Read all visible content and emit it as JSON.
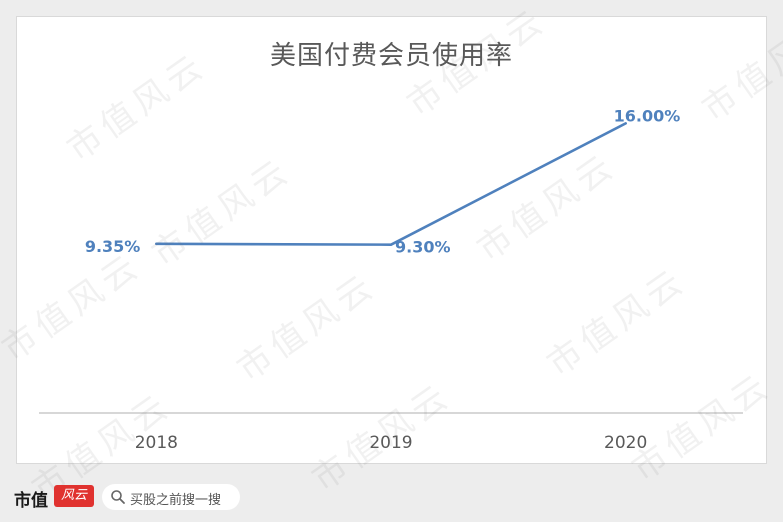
{
  "chart_data": {
    "type": "line",
    "title": "美国付费会员使用率",
    "categories": [
      "2018",
      "2019",
      "2020"
    ],
    "series": [
      {
        "values": [
          9.35,
          9.3,
          16.0
        ],
        "labels": [
          "9.35%",
          "9.30%",
          "16.00%"
        ],
        "color": "#4f81bd"
      }
    ],
    "ylim": [
      0,
      20
    ],
    "grid": false,
    "xlabel": "",
    "ylabel": ""
  },
  "watermark": {
    "text": "市值风云"
  },
  "footer": {
    "brand": "市值",
    "brand_mark": "风云",
    "search_placeholder": "买股之前搜一搜"
  },
  "colors": {
    "line": "#4f81bd",
    "label": "#4f81bd",
    "axis": "#bfbfbf",
    "brand_red": "#e0322f"
  }
}
